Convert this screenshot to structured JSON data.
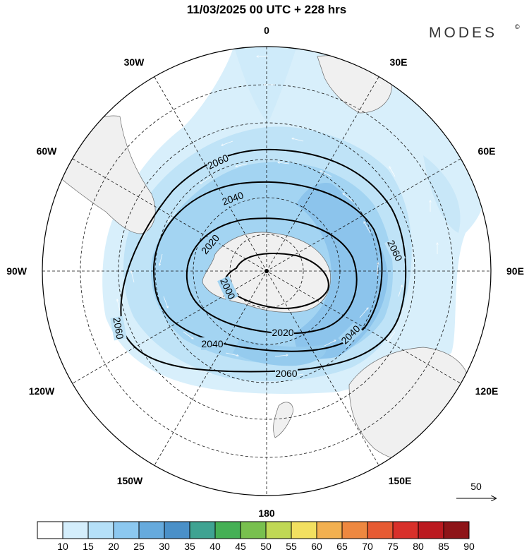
{
  "title": "11/03/2025  00 UTC  + 228 hrs",
  "brand": "MODES",
  "brand_mark": "©",
  "longitudes": {
    "n": "0",
    "s": "180",
    "e": "90E",
    "w": "90W",
    "n30e": "30E",
    "n30w": "30W",
    "n60e": "60E",
    "n60w": "60W",
    "s120e": "120E",
    "s120w": "120W",
    "s150e": "150E",
    "s150w": "150W"
  },
  "contour_labels": [
    "2000",
    "2020",
    "2040",
    "2060"
  ],
  "vector_reference": "50",
  "colorbar": {
    "ticks": [
      "10",
      "15",
      "20",
      "25",
      "30",
      "35",
      "40",
      "45",
      "50",
      "55",
      "60",
      "65",
      "70",
      "75",
      "80",
      "85",
      "90"
    ],
    "colors": [
      "#ffffff",
      "#d4eefc",
      "#b5e0f8",
      "#8cc8f0",
      "#66aadd",
      "#4a90c8",
      "#3fa392",
      "#45b055",
      "#78c04e",
      "#c0d855",
      "#f2e060",
      "#f2b050",
      "#ee8840",
      "#e65a32",
      "#d8302a",
      "#bb1a20",
      "#8e1418"
    ]
  }
}
